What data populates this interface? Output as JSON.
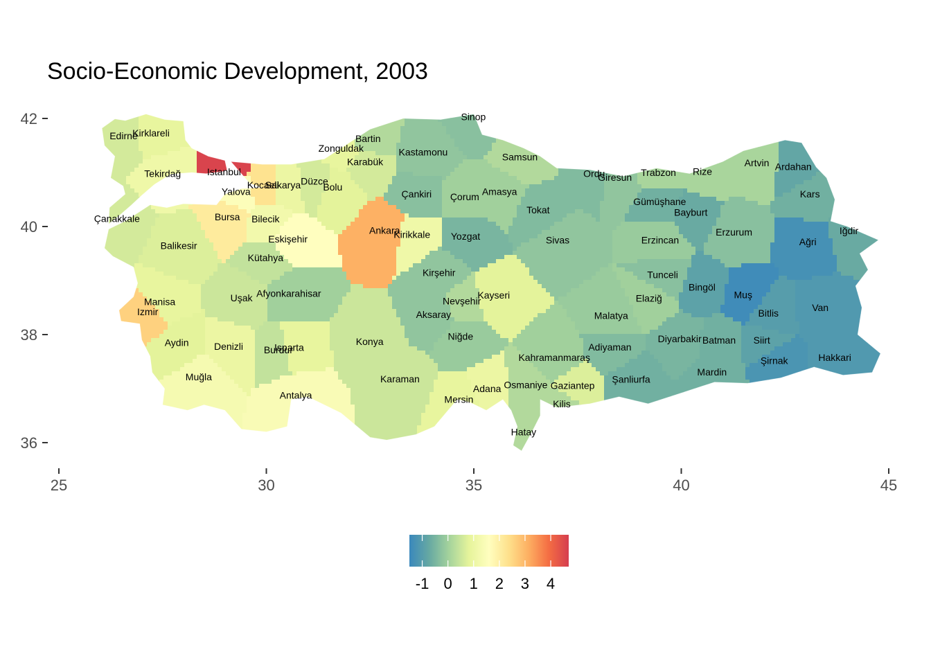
{
  "title": "Socio-Economic Development, 2003",
  "axes": {
    "x_ticks": [
      25,
      30,
      35,
      40,
      45
    ],
    "y_ticks": [
      36,
      38,
      40,
      42
    ],
    "xlim": [
      25,
      45
    ],
    "ylim": [
      35.8,
      42.1
    ]
  },
  "legend": {
    "type": "colorbar",
    "position": "bottom",
    "ticks": [
      -1,
      0,
      1,
      2,
      3,
      4
    ],
    "range": [
      -1.5,
      4.7
    ],
    "colors": [
      "#3a88bc",
      "#67a9a2",
      "#a5d39c",
      "#e6f49b",
      "#fffebf",
      "#fee08b",
      "#fdae61",
      "#f46d43",
      "#d53e4f"
    ]
  },
  "provinces": [
    {
      "name": "Edirne",
      "lon": 26.56,
      "lat": 41.68,
      "value": 0.6
    },
    {
      "name": "Kirklareli",
      "lon": 27.22,
      "lat": 41.73,
      "value": 0.9
    },
    {
      "name": "Tekirdağ",
      "lon": 27.5,
      "lat": 40.98,
      "value": 1.1
    },
    {
      "name": "Istanbul",
      "lon": 28.98,
      "lat": 41.01,
      "value": 4.6
    },
    {
      "name": "Kocaeli",
      "lon": 29.92,
      "lat": 40.77,
      "value": 2.3
    },
    {
      "name": "Yalova",
      "lon": 29.27,
      "lat": 40.65,
      "value": 1.5
    },
    {
      "name": "Sakarya",
      "lon": 30.4,
      "lat": 40.77,
      "value": 1.0
    },
    {
      "name": "Düzce",
      "lon": 31.16,
      "lat": 40.84,
      "value": 0.6
    },
    {
      "name": "Bolu",
      "lon": 31.6,
      "lat": 40.73,
      "value": 0.8
    },
    {
      "name": "Bartin",
      "lon": 32.45,
      "lat": 41.63,
      "value": 0.2
    },
    {
      "name": "Zonguldak",
      "lon": 31.8,
      "lat": 41.45,
      "value": 0.9
    },
    {
      "name": "Karabük",
      "lon": 32.38,
      "lat": 41.2,
      "value": 0.6
    },
    {
      "name": "Kastamonu",
      "lon": 33.78,
      "lat": 41.38,
      "value": -0.2
    },
    {
      "name": "Sinop",
      "lon": 34.99,
      "lat": 42.03,
      "value": -0.3
    },
    {
      "name": "Samsun",
      "lon": 36.11,
      "lat": 41.29,
      "value": 0.2
    },
    {
      "name": "Çankiri",
      "lon": 33.62,
      "lat": 40.6,
      "value": -0.3
    },
    {
      "name": "Çorum",
      "lon": 34.78,
      "lat": 40.55,
      "value": 0.0
    },
    {
      "name": "Amasya",
      "lon": 35.62,
      "lat": 40.65,
      "value": 0.0
    },
    {
      "name": "Tokat",
      "lon": 36.55,
      "lat": 40.31,
      "value": -0.4
    },
    {
      "name": "Ordu",
      "lon": 37.9,
      "lat": 40.98,
      "value": -0.4
    },
    {
      "name": "Giresun",
      "lon": 38.4,
      "lat": 40.91,
      "value": -0.2
    },
    {
      "name": "Trabzon",
      "lon": 39.45,
      "lat": 41.0,
      "value": 0.1
    },
    {
      "name": "Rize",
      "lon": 40.51,
      "lat": 41.02,
      "value": 0.1
    },
    {
      "name": "Artvin",
      "lon": 41.82,
      "lat": 41.18,
      "value": 0.1
    },
    {
      "name": "Ardahan",
      "lon": 42.7,
      "lat": 41.11,
      "value": -0.8
    },
    {
      "name": "Kars",
      "lon": 43.1,
      "lat": 40.6,
      "value": -0.6
    },
    {
      "name": "Iğdir",
      "lon": 44.04,
      "lat": 39.92,
      "value": -0.7
    },
    {
      "name": "Ağri",
      "lon": 43.05,
      "lat": 39.72,
      "value": -1.3
    },
    {
      "name": "Gümüşhane",
      "lon": 39.48,
      "lat": 40.46,
      "value": -0.6
    },
    {
      "name": "Bayburt",
      "lon": 40.23,
      "lat": 40.26,
      "value": -0.7
    },
    {
      "name": "Erzurum",
      "lon": 41.27,
      "lat": 39.9,
      "value": -0.3
    },
    {
      "name": "Erzincan",
      "lon": 39.49,
      "lat": 39.75,
      "value": -0.1
    },
    {
      "name": "Sivas",
      "lon": 37.02,
      "lat": 39.75,
      "value": -0.2
    },
    {
      "name": "Yozgat",
      "lon": 34.8,
      "lat": 39.82,
      "value": -0.5
    },
    {
      "name": "Ankara",
      "lon": 32.85,
      "lat": 39.93,
      "value": 3.1
    },
    {
      "name": "Kirikkale",
      "lon": 33.51,
      "lat": 39.85,
      "value": 1.1
    },
    {
      "name": "Kirşehir",
      "lon": 34.16,
      "lat": 39.15,
      "value": -0.2
    },
    {
      "name": "Eskişehir",
      "lon": 30.52,
      "lat": 39.77,
      "value": 1.6
    },
    {
      "name": "Bilecik",
      "lon": 29.98,
      "lat": 40.14,
      "value": 1.2
    },
    {
      "name": "Bursa",
      "lon": 29.06,
      "lat": 40.18,
      "value": 2.1
    },
    {
      "name": "Çanakkale",
      "lon": 26.4,
      "lat": 40.15,
      "value": 0.6
    },
    {
      "name": "Balikesir",
      "lon": 27.89,
      "lat": 39.65,
      "value": 0.7
    },
    {
      "name": "Kütahya",
      "lon": 29.98,
      "lat": 39.42,
      "value": 0.4
    },
    {
      "name": "Manisa",
      "lon": 27.43,
      "lat": 38.61,
      "value": 0.9
    },
    {
      "name": "Izmir",
      "lon": 27.14,
      "lat": 38.42,
      "value": 2.6
    },
    {
      "name": "Uşak",
      "lon": 29.4,
      "lat": 38.68,
      "value": 0.5
    },
    {
      "name": "Afyonkarahisar",
      "lon": 30.54,
      "lat": 38.76,
      "value": 0.0
    },
    {
      "name": "Aydin",
      "lon": 27.84,
      "lat": 37.85,
      "value": 0.8
    },
    {
      "name": "Denizli",
      "lon": 29.09,
      "lat": 37.78,
      "value": 1.0
    },
    {
      "name": "Isparta",
      "lon": 30.55,
      "lat": 37.76,
      "value": 0.9
    },
    {
      "name": "Burdur",
      "lon": 30.29,
      "lat": 37.72,
      "value": 0.4
    },
    {
      "name": "Muğla",
      "lon": 28.37,
      "lat": 37.22,
      "value": 1.3
    },
    {
      "name": "Antalya",
      "lon": 30.71,
      "lat": 36.88,
      "value": 1.4
    },
    {
      "name": "Konya",
      "lon": 32.49,
      "lat": 37.87,
      "value": 0.5
    },
    {
      "name": "Karaman",
      "lon": 33.22,
      "lat": 37.18,
      "value": 0.5
    },
    {
      "name": "Aksaray",
      "lon": 34.03,
      "lat": 38.37,
      "value": -0.2
    },
    {
      "name": "Nevşehir",
      "lon": 34.71,
      "lat": 38.62,
      "value": 0.2
    },
    {
      "name": "Kayseri",
      "lon": 35.48,
      "lat": 38.73,
      "value": 0.8
    },
    {
      "name": "Niğde",
      "lon": 34.68,
      "lat": 37.97,
      "value": -0.1
    },
    {
      "name": "Mersin",
      "lon": 34.64,
      "lat": 36.8,
      "value": 0.9
    },
    {
      "name": "Adana",
      "lon": 35.32,
      "lat": 37.0,
      "value": 1.0
    },
    {
      "name": "Osmaniye",
      "lon": 36.25,
      "lat": 37.07,
      "value": 0.2
    },
    {
      "name": "Kahramanmaraş",
      "lon": 36.94,
      "lat": 37.58,
      "value": 0.0
    },
    {
      "name": "Gaziantep",
      "lon": 37.38,
      "lat": 37.06,
      "value": 0.7
    },
    {
      "name": "Kilis",
      "lon": 37.12,
      "lat": 36.72,
      "value": 0.2
    },
    {
      "name": "Hatay",
      "lon": 36.2,
      "lat": 36.2,
      "value": 0.2
    },
    {
      "name": "Malatya",
      "lon": 38.31,
      "lat": 38.35,
      "value": -0.1
    },
    {
      "name": "Adiyaman",
      "lon": 38.28,
      "lat": 37.77,
      "value": -0.4
    },
    {
      "name": "Şanliurfa",
      "lon": 38.79,
      "lat": 37.17,
      "value": -0.6
    },
    {
      "name": "Tunceli",
      "lon": 39.55,
      "lat": 39.11,
      "value": -0.3
    },
    {
      "name": "Elaziğ",
      "lon": 39.22,
      "lat": 38.67,
      "value": 0.0
    },
    {
      "name": "Bingöl",
      "lon": 40.5,
      "lat": 38.88,
      "value": -0.9
    },
    {
      "name": "Muş",
      "lon": 41.49,
      "lat": 38.74,
      "value": -1.4
    },
    {
      "name": "Diyarbakir",
      "lon": 39.96,
      "lat": 37.92,
      "value": -0.5
    },
    {
      "name": "Batman",
      "lon": 40.91,
      "lat": 37.9,
      "value": -0.6
    },
    {
      "name": "Siirt",
      "lon": 41.94,
      "lat": 37.9,
      "value": -0.9
    },
    {
      "name": "Bitlis",
      "lon": 42.1,
      "lat": 38.4,
      "value": -1.0
    },
    {
      "name": "Van",
      "lon": 43.35,
      "lat": 38.5,
      "value": -1.1
    },
    {
      "name": "Şirnak",
      "lon": 42.24,
      "lat": 37.52,
      "value": -1.2
    },
    {
      "name": "Hakkari",
      "lon": 43.7,
      "lat": 37.58,
      "value": -1.1
    },
    {
      "name": "Mardin",
      "lon": 40.74,
      "lat": 37.31,
      "value": -0.6
    }
  ]
}
